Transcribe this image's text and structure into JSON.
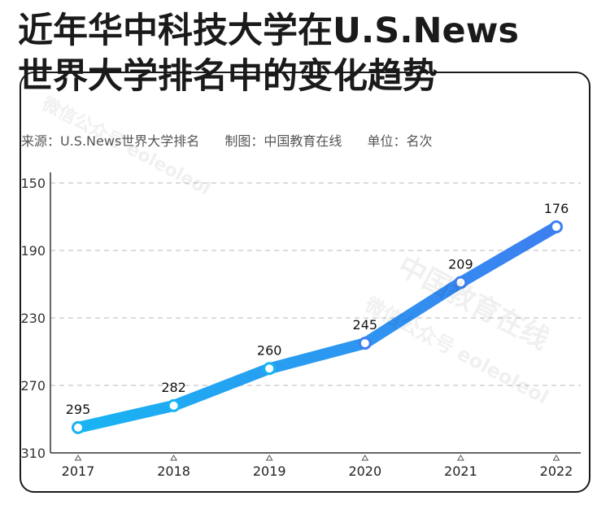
{
  "title": {
    "line1": "近年华中科技大学在U.S.News",
    "line2": "世界大学排名中的变化趋势"
  },
  "meta": {
    "source": "来源：U.S.News世界大学排名",
    "maker": "制图：中国教育在线",
    "unit": "单位：名次"
  },
  "watermark": {
    "text1": "中国教育在线",
    "text2": "微信公众号 eoleoleol"
  },
  "colors": {
    "line_start": "#18b4f2",
    "line_end": "#3d7ff0",
    "frame": "#1a1a1a",
    "grid": "#c8c8c8"
  },
  "chart_data": {
    "type": "line",
    "x": [
      "2017",
      "2018",
      "2019",
      "2020",
      "2021",
      "2022"
    ],
    "series": [
      {
        "values": [
          295,
          282,
          260,
          245,
          209,
          176
        ]
      }
    ],
    "data_labels": [
      "295",
      "282",
      "260",
      "245",
      "209",
      "176"
    ],
    "y_ticks": [
      "150",
      "190",
      "230",
      "270",
      "310"
    ],
    "ylim": [
      310,
      150
    ],
    "y_inverted": true,
    "grid": true,
    "xlabel": "",
    "ylabel": ""
  }
}
